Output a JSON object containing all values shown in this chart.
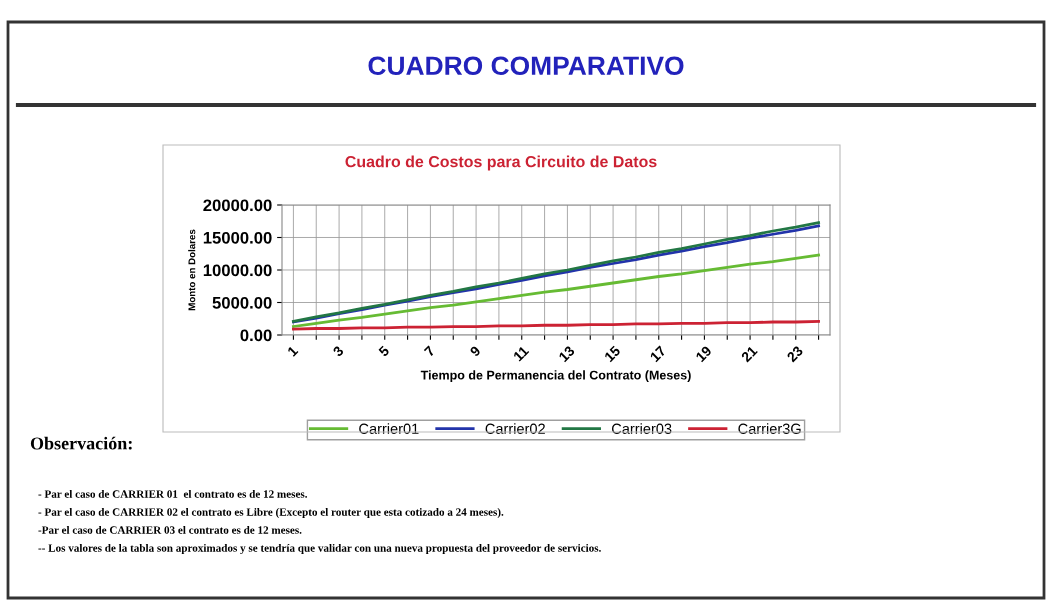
{
  "chart_data": {
    "type": "line",
    "title": "CUADRO COMPARATIVO",
    "subtitle": "Cuadro de Costos para Circuito de Datos",
    "xlabel": "Tiempo de Permanencia del Contrato (Meses)",
    "ylabel": "Monto en Dolares",
    "categories": [
      "1",
      null,
      "3",
      null,
      "5",
      null,
      "7",
      null,
      "9",
      null,
      "11",
      null,
      "13",
      null,
      "15",
      null,
      "17",
      null,
      "19",
      null,
      "21",
      null,
      "23",
      null
    ],
    "series": [
      {
        "name": "Carrier01",
        "color": "#66bb33",
        "values": [
          1300,
          1800,
          2300,
          2700,
          3200,
          3700,
          4200,
          4600,
          5100,
          5600,
          6100,
          6600,
          7000,
          7500,
          8000,
          8500,
          9000,
          9400,
          9900,
          10400,
          10900,
          11300,
          11800,
          12300
        ]
      },
      {
        "name": "Carrier02",
        "color": "#2233aa",
        "values": [
          2000,
          2600,
          3300,
          3900,
          4600,
          5200,
          5900,
          6500,
          7100,
          7800,
          8400,
          9100,
          9700,
          10400,
          11000,
          11600,
          12300,
          12900,
          13600,
          14200,
          14900,
          15500,
          16100,
          16800
        ]
      },
      {
        "name": "Carrier03",
        "color": "#227744",
        "values": [
          2100,
          2800,
          3400,
          4100,
          4700,
          5400,
          6100,
          6700,
          7400,
          8000,
          8700,
          9400,
          10000,
          10700,
          11400,
          12000,
          12700,
          13300,
          14000,
          14700,
          15300,
          16000,
          16600,
          17300
        ]
      },
      {
        "name": "Carrier3G",
        "color": "#cc2233",
        "values": [
          900,
          1000,
          1000,
          1100,
          1100,
          1200,
          1200,
          1300,
          1300,
          1400,
          1400,
          1500,
          1500,
          1600,
          1600,
          1700,
          1700,
          1800,
          1800,
          1900,
          1900,
          2000,
          2000,
          2100
        ]
      }
    ],
    "ylim": [
      0,
      20000
    ],
    "yticks": [
      {
        "value": 0,
        "label": "0.00"
      },
      {
        "value": 5000,
        "label": "5000.00"
      },
      {
        "value": 10000,
        "label": "10000.00"
      },
      {
        "value": 15000,
        "label": "15000.00"
      },
      {
        "value": 20000,
        "label": "20000.00"
      }
    ],
    "grid": true,
    "legend": "bottom",
    "marker": "none",
    "line_style": "solid",
    "annotations": [
      "Observación:",
      "- Par el caso de CARRIER 01  el contrato es de 12 meses.",
      "- Par el caso de CARRIER 02 el contrato es Libre (Excepto el router que esta cotizado a 24 meses).",
      "-Par el caso de CARRIER 03 el contrato es de 12 meses.",
      "-- Los valores de la tabla son aproximados y se tendría que validar con una nueva propuesta del proveedor de servicios."
    ]
  }
}
